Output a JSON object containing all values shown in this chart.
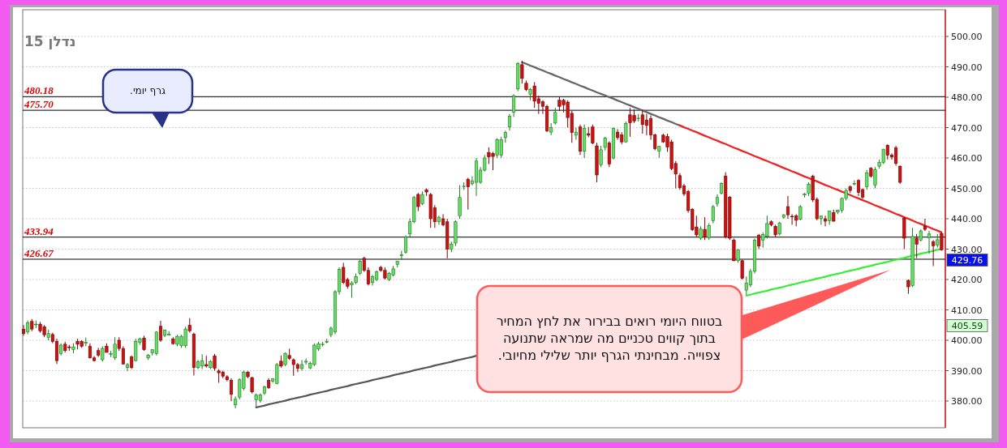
{
  "chart_data": {
    "type": "candlestick",
    "title": "נדלן 15",
    "categories": [
      null,
      null,
      null,
      null,
      null,
      null,
      null,
      null,
      null,
      null,
      null,
      null,
      null,
      null,
      null,
      null,
      null,
      null,
      null,
      null,
      null,
      null,
      null,
      null,
      null,
      null,
      null,
      null,
      null,
      null,
      null,
      null,
      null,
      null,
      null,
      null,
      null,
      null,
      null,
      null,
      null,
      null,
      null,
      null,
      null,
      null,
      null,
      null,
      null,
      null,
      null,
      null,
      null,
      null,
      null,
      null,
      null,
      null,
      null,
      null,
      null,
      null,
      null,
      null,
      null,
      null,
      null,
      null,
      null,
      null,
      null,
      null,
      null,
      null,
      null,
      null,
      null,
      null,
      null,
      null,
      null,
      null,
      null,
      null,
      null,
      null,
      null,
      null,
      null,
      null,
      null,
      null,
      null,
      null,
      null,
      null,
      null,
      null,
      null,
      null,
      null,
      null,
      null,
      null,
      null,
      null,
      null,
      null,
      null,
      null,
      null,
      null,
      null,
      null,
      null,
      null,
      null,
      null,
      null,
      null,
      null,
      null,
      null,
      null,
      null,
      null,
      null,
      null,
      null,
      null,
      null,
      null,
      null,
      null,
      null,
      null,
      null,
      null,
      null,
      null,
      null,
      null,
      null,
      null,
      null,
      null,
      null,
      null,
      null,
      null,
      null,
      null,
      null,
      null,
      null,
      null,
      null,
      null,
      null,
      null,
      null,
      null,
      null,
      null,
      null,
      null,
      null,
      null,
      null,
      null,
      null,
      null,
      null,
      null,
      null,
      null,
      null,
      null,
      null,
      null,
      null,
      null,
      null,
      null,
      null,
      null,
      null,
      null,
      null,
      null,
      null,
      null,
      null,
      null,
      null,
      null,
      null,
      null,
      null,
      null,
      null,
      null,
      null,
      null,
      null,
      null,
      null,
      null,
      null,
      null,
      null,
      null,
      null,
      null,
      null,
      null,
      null,
      null,
      null,
      null,
      null,
      null
    ],
    "ohlc": [
      [
        403.6,
        405.0,
        401.5,
        402.2
      ],
      [
        402.8,
        406.5,
        402.0,
        405.8
      ],
      [
        406.2,
        407.0,
        403.0,
        403.7
      ],
      [
        405.3,
        406.5,
        404.0,
        405.3
      ],
      [
        405.3,
        406.0,
        402.5,
        403.1
      ],
      [
        404.4,
        405.0,
        401.0,
        401.8
      ],
      [
        400.9,
        403.5,
        400.0,
        402.2
      ],
      [
        401.9,
        402.5,
        399.0,
        399.6
      ],
      [
        399.6,
        400.5,
        392.2,
        393.3
      ],
      [
        395.6,
        399.0,
        395.0,
        398.4
      ],
      [
        398.7,
        399.5,
        396.0,
        396.6
      ],
      [
        397.8,
        398.5,
        396.5,
        397.6
      ],
      [
        396.9,
        399.0,
        395.7,
        397.8
      ],
      [
        399.6,
        400.5,
        397.0,
        398.7
      ],
      [
        399.6,
        400.0,
        397.5,
        398.0
      ],
      [
        399.0,
        400.9,
        398.0,
        399.3
      ],
      [
        398.0,
        399.0,
        394.0,
        394.2
      ],
      [
        394.2,
        394.8,
        393.0,
        393.3
      ],
      [
        396.6,
        397.5,
        394.5,
        395.1
      ],
      [
        393.6,
        398.0,
        393.0,
        397.3
      ],
      [
        398.0,
        399.0,
        396.0,
        396.0
      ],
      [
        395.5,
        396.5,
        394.5,
        395.6
      ],
      [
        394.2,
        401.0,
        393.5,
        398.7
      ],
      [
        400.0,
        401.0,
        396.5,
        397.3
      ],
      [
        397.3,
        398.0,
        392.0,
        392.2
      ],
      [
        391.0,
        392.5,
        389.8,
        392.0
      ],
      [
        394.5,
        395.0,
        390.5,
        391.0
      ],
      [
        393.3,
        400.5,
        393.0,
        399.6
      ],
      [
        399.3,
        400.9,
        398.5,
        400.4
      ],
      [
        400.7,
        401.5,
        396.5,
        396.9
      ],
      [
        394.2,
        395.5,
        393.5,
        395.1
      ],
      [
        395.9,
        397.0,
        395.0,
        396.9
      ],
      [
        395.6,
        403.0,
        395.0,
        402.7
      ],
      [
        404.6,
        406.4,
        399.5,
        400.0
      ],
      [
        401.6,
        403.5,
        401.0,
        403.3
      ],
      [
        402.0,
        403.0,
        401.5,
        402.0
      ],
      [
        400.4,
        401.0,
        398.5,
        398.9
      ],
      [
        398.7,
        401.8,
        398.0,
        401.3
      ],
      [
        398.2,
        401.8,
        397.5,
        401.3
      ],
      [
        398.2,
        404.5,
        397.5,
        403.7
      ],
      [
        404.9,
        407.3,
        402.5,
        403.1
      ],
      [
        402.0,
        402.5,
        388.4,
        391.0
      ],
      [
        391.0,
        393.5,
        390.5,
        393.0
      ],
      [
        391.5,
        395.4,
        390.5,
        393.3
      ],
      [
        392.0,
        394.9,
        391.0,
        391.5
      ],
      [
        391.0,
        393.5,
        390.5,
        393.0
      ],
      [
        394.8,
        395.5,
        390.0,
        390.8
      ],
      [
        389.9,
        390.5,
        386.0,
        389.3
      ],
      [
        389.5,
        390.0,
        387.5,
        388.2
      ],
      [
        388.0,
        388.5,
        386.5,
        387.0
      ],
      [
        386.8,
        387.5,
        380.0,
        382.2
      ],
      [
        378.7,
        381.5,
        377.6,
        380.6
      ],
      [
        381.3,
        387.5,
        380.5,
        387.0
      ],
      [
        384.2,
        390.0,
        383.5,
        389.5
      ],
      [
        389.5,
        389.8,
        387.5,
        388.0
      ],
      [
        387.7,
        388.0,
        382.5,
        383.0
      ],
      [
        380.4,
        382.5,
        378.0,
        382.0
      ],
      [
        380.2,
        382.5,
        379.5,
        382.0
      ],
      [
        382.6,
        385.0,
        382.0,
        384.7
      ],
      [
        386.8,
        387.5,
        384.0,
        384.4
      ],
      [
        386.5,
        387.5,
        386.0,
        387.3
      ],
      [
        385.8,
        392.5,
        385.5,
        392.0
      ],
      [
        393.1,
        395.0,
        391.0,
        391.5
      ],
      [
        392.0,
        396.0,
        391.5,
        395.7
      ],
      [
        395.0,
        397.2,
        393.5,
        394.0
      ],
      [
        393.6,
        394.0,
        388.3,
        392.0
      ],
      [
        392.0,
        392.5,
        389.5,
        390.7
      ],
      [
        390.7,
        393.5,
        390.0,
        392.0
      ],
      [
        392.8,
        394.0,
        392.0,
        393.1
      ],
      [
        390.9,
        393.0,
        390.5,
        392.4
      ],
      [
        392.0,
        399.0,
        391.5,
        398.4
      ],
      [
        397.1,
        399.5,
        396.5,
        398.9
      ],
      [
        398.6,
        399.5,
        398.0,
        398.7
      ],
      [
        399.5,
        400.5,
        399.0,
        399.6
      ],
      [
        401.8,
        404.5,
        401.0,
        404.0
      ],
      [
        402.7,
        416.5,
        402.0,
        416.0
      ],
      [
        416.0,
        424.0,
        415.0,
        423.3
      ],
      [
        424.0,
        425.5,
        418.5,
        419.0
      ],
      [
        420.0,
        420.5,
        417.0,
        417.8
      ],
      [
        418.2,
        419.5,
        414.0,
        418.8
      ],
      [
        419.0,
        422.0,
        418.5,
        421.0
      ],
      [
        422.0,
        426.5,
        421.5,
        426.0
      ],
      [
        427.0,
        427.5,
        422.5,
        423.0
      ],
      [
        423.0,
        424.0,
        418.0,
        418.5
      ],
      [
        419.0,
        421.5,
        418.0,
        421.0
      ],
      [
        420.0,
        423.0,
        419.5,
        422.5
      ],
      [
        424.0,
        424.5,
        422.5,
        423.0
      ],
      [
        423.0,
        424.0,
        420.0,
        420.5
      ],
      [
        420.0,
        422.5,
        419.5,
        422.0
      ],
      [
        421.5,
        424.5,
        421.0,
        423.5
      ],
      [
        425.0,
        426.0,
        424.0,
        426.0
      ],
      [
        427.8,
        429.5,
        426.5,
        428.2
      ],
      [
        429.0,
        434.5,
        428.5,
        434.0
      ],
      [
        435.0,
        440.0,
        434.0,
        439.0
      ],
      [
        439.0,
        447.5,
        438.5,
        447.0
      ],
      [
        448.0,
        448.5,
        442.5,
        444.0
      ],
      [
        445.0,
        449.0,
        444.5,
        448.0
      ],
      [
        449.5,
        450.0,
        447.5,
        448.8
      ],
      [
        448.0,
        448.5,
        437.0,
        440.0
      ],
      [
        443.6,
        444.5,
        437.0,
        439.0
      ],
      [
        439.0,
        441.0,
        438.0,
        440.5
      ],
      [
        440.0,
        441.5,
        437.5,
        438.0
      ],
      [
        439.0,
        440.0,
        427.0,
        430.0
      ],
      [
        430.0,
        432.5,
        429.0,
        431.7
      ],
      [
        432.0,
        439.5,
        431.0,
        439.0
      ],
      [
        441.0,
        451.0,
        440.0,
        447.0
      ],
      [
        450.5,
        452.0,
        449.5,
        450.7
      ],
      [
        453.0,
        453.5,
        443.0,
        450.5
      ],
      [
        451.5,
        454.0,
        451.0,
        452.5
      ],
      [
        452.0,
        460.0,
        447.5,
        459.0
      ],
      [
        452.0,
        457.0,
        451.5,
        456.0
      ],
      [
        456.0,
        461.0,
        455.5,
        460.0
      ],
      [
        461.8,
        463.5,
        458.0,
        460.4
      ],
      [
        461.5,
        462.0,
        456.0,
        460.5
      ],
      [
        461.0,
        466.5,
        460.0,
        466.0
      ],
      [
        460.9,
        467.0,
        460.0,
        466.0
      ],
      [
        466.7,
        469.0,
        465.0,
        468.4
      ],
      [
        470.2,
        474.5,
        469.0,
        473.8
      ],
      [
        475.1,
        481.0,
        473.5,
        480.4
      ],
      [
        482.7,
        491.5,
        482.0,
        491.1
      ],
      [
        490.7,
        492.0,
        484.5,
        486.2
      ],
      [
        484.6,
        485.5,
        482.0,
        482.5
      ],
      [
        481.0,
        483.0,
        479.0,
        482.5
      ],
      [
        483.7,
        485.0,
        476.5,
        478.7
      ],
      [
        479.5,
        480.5,
        474.5,
        478.0
      ],
      [
        478.5,
        479.0,
        474.5,
        477.0
      ],
      [
        477.0,
        477.5,
        468.5,
        468.9
      ],
      [
        468.5,
        471.5,
        467.5,
        470.0
      ],
      [
        471.5,
        476.5,
        471.0,
        475.0
      ],
      [
        479.0,
        480.0,
        475.5,
        477.0
      ],
      [
        479.0,
        479.5,
        475.0,
        477.5
      ],
      [
        478.4,
        479.0,
        470.0,
        473.3
      ],
      [
        474.7,
        475.5,
        465.0,
        468.4
      ],
      [
        467.5,
        470.0,
        466.0,
        468.5
      ],
      [
        470.2,
        471.0,
        461.0,
        462.2
      ],
      [
        462.2,
        471.0,
        460.0,
        469.8
      ],
      [
        468.0,
        470.2,
        466.8,
        467.5
      ],
      [
        470.2,
        471.0,
        464.5,
        464.9
      ],
      [
        464.0,
        465.0,
        452.0,
        454.4
      ],
      [
        457.8,
        464.0,
        457.0,
        462.7
      ],
      [
        463.5,
        467.0,
        462.5,
        466.5
      ],
      [
        464.9,
        465.5,
        457.0,
        458.0
      ],
      [
        460.0,
        470.0,
        459.5,
        469.8
      ],
      [
        468.5,
        469.5,
        466.0,
        466.7
      ],
      [
        467.6,
        468.5,
        464.5,
        465.3
      ],
      [
        465.3,
        472.0,
        465.0,
        471.3
      ],
      [
        474.2,
        476.5,
        467.0,
        471.6
      ],
      [
        474.0,
        476.0,
        471.5,
        472.2
      ],
      [
        473.0,
        474.5,
        472.0,
        473.1
      ],
      [
        474.2,
        476.0,
        468.0,
        471.0
      ],
      [
        472.5,
        474.5,
        467.5,
        470.7
      ],
      [
        473.0,
        474.0,
        466.0,
        467.6
      ],
      [
        467.6,
        468.0,
        462.5,
        463.1
      ],
      [
        462.3,
        464.0,
        460.0,
        463.8
      ],
      [
        467.5,
        468.0,
        465.0,
        465.3
      ],
      [
        467.1,
        468.0,
        462.0,
        463.6
      ],
      [
        465.3,
        466.0,
        456.0,
        456.5
      ],
      [
        458.2,
        459.0,
        450.0,
        454.7
      ],
      [
        454.2,
        455.0,
        449.5,
        450.2
      ],
      [
        450.8,
        451.5,
        447.5,
        448.2
      ],
      [
        448.9,
        449.5,
        442.0,
        442.7
      ],
      [
        443.1,
        443.5,
        436.0,
        436.4
      ],
      [
        437.3,
        441.0,
        434.0,
        434.7
      ],
      [
        433.6,
        437.5,
        433.0,
        436.6
      ],
      [
        436.5,
        440.5,
        433.0,
        434.0
      ],
      [
        433.8,
        438.5,
        433.0,
        437.8
      ],
      [
        439.3,
        444.5,
        438.5,
        444.0
      ],
      [
        445.0,
        448.0,
        444.0,
        447.0
      ],
      [
        448.4,
        452.0,
        448.0,
        451.6
      ],
      [
        454.0,
        455.3,
        433.5,
        434.0
      ],
      [
        447.1,
        447.5,
        433.0,
        433.6
      ],
      [
        432.9,
        433.5,
        426.0,
        426.2
      ],
      [
        426.2,
        430.0,
        425.5,
        429.8
      ],
      [
        426.2,
        426.5,
        420.0,
        420.4
      ],
      [
        416.5,
        421.0,
        415.0,
        418.8
      ],
      [
        418.2,
        423.5,
        417.5,
        422.7
      ],
      [
        422.7,
        433.5,
        422.0,
        432.9
      ],
      [
        434.5,
        435.0,
        430.0,
        431.0
      ],
      [
        433.0,
        435.5,
        430.5,
        434.8
      ],
      [
        434.2,
        441.0,
        433.5,
        438.4
      ],
      [
        439.0,
        439.5,
        437.5,
        438.0
      ],
      [
        437.5,
        438.0,
        434.0,
        434.7
      ],
      [
        435.0,
        439.0,
        434.5,
        438.6
      ],
      [
        440.5,
        441.5,
        440.0,
        441.3
      ],
      [
        444.0,
        447.5,
        440.0,
        441.3
      ],
      [
        440.8,
        441.5,
        438.0,
        440.6
      ],
      [
        441.0,
        441.5,
        437.5,
        439.5
      ],
      [
        439.8,
        444.5,
        439.5,
        444.0
      ],
      [
        447.8,
        448.5,
        447.0,
        448.2
      ],
      [
        448.4,
        452.0,
        447.5,
        451.4
      ],
      [
        454.0,
        454.5,
        445.5,
        446.2
      ],
      [
        446.4,
        447.0,
        439.5,
        440.0
      ],
      [
        440.0,
        440.9,
        438.0,
        440.9
      ],
      [
        440.0,
        441.0,
        437.5,
        439.2
      ],
      [
        439.3,
        442.5,
        438.0,
        442.5
      ],
      [
        442.0,
        443.0,
        439.0,
        439.2
      ],
      [
        442.2,
        443.0,
        441.5,
        442.8
      ],
      [
        442.8,
        447.0,
        442.0,
        446.7
      ],
      [
        446.7,
        450.0,
        446.0,
        449.3
      ],
      [
        450.5,
        451.0,
        448.5,
        449.3
      ],
      [
        451.5,
        452.6,
        451.0,
        451.6
      ],
      [
        452.6,
        453.0,
        447.5,
        448.7
      ],
      [
        449.6,
        450.0,
        446.5,
        447.1
      ],
      [
        450.5,
        456.0,
        449.5,
        455.1
      ],
      [
        456.6,
        457.0,
        453.5,
        454.0
      ],
      [
        451.1,
        457.0,
        450.0,
        456.2
      ],
      [
        457.3,
        459.5,
        456.5,
        458.5
      ],
      [
        458.5,
        463.0,
        458.0,
        462.9
      ],
      [
        464.2,
        464.5,
        459.5,
        460.9
      ],
      [
        461.0,
        461.5,
        459.5,
        460.3
      ],
      [
        463.3,
        464.0,
        457.5,
        458.2
      ],
      [
        457.3,
        457.5,
        451.5,
        452.0
      ],
      [
        440.2,
        440.5,
        430.0,
        433.6
      ],
      [
        419.7,
        420.0,
        415.3,
        417.6
      ],
      [
        418.0,
        437.0,
        417.5,
        434.2
      ],
      [
        433.6,
        435.0,
        427.0,
        431.6
      ],
      [
        433.0,
        436.5,
        432.5,
        436.0
      ],
      [
        437.5,
        440.0,
        436.0,
        436.5
      ],
      [
        433.7,
        436.0,
        428.5,
        435.0
      ],
      [
        432.4,
        433.0,
        424.4,
        431.1
      ],
      [
        431.3,
        435.0,
        430.5,
        433.1
      ],
      [
        435.1,
        435.5,
        429.5,
        429.76
      ]
    ],
    "series": [
      {
        "type": "line",
        "color": "#666666",
        "values": [
          null,
          null,
          null,
          null,
          null,
          null,
          null,
          null,
          null,
          null,
          null,
          null,
          null,
          null,
          null,
          null,
          null,
          null,
          null,
          null,
          null,
          null,
          null,
          null,
          null,
          null,
          null,
          null,
          null,
          null,
          null,
          null,
          null,
          null,
          null,
          null,
          null,
          null,
          null,
          null,
          null,
          null,
          null,
          null,
          null,
          null,
          null,
          null,
          null,
          null,
          null,
          null,
          null,
          null,
          null,
          null,
          null,
          null,
          null,
          null,
          null,
          null,
          null,
          null,
          null,
          null,
          null,
          null,
          null,
          null,
          null,
          null,
          null,
          null,
          null,
          null,
          null,
          null,
          null,
          null,
          null,
          null,
          null,
          null,
          null,
          null,
          null,
          null,
          null,
          null,
          null,
          null,
          null,
          null,
          null,
          null,
          null,
          null,
          null,
          null,
          null,
          null,
          null,
          null,
          null,
          null,
          null,
          null,
          null,
          null,
          null,
          null,
          null,
          null,
          null,
          null,
          null,
          null,
          null,
          null,
          491.5,
          491.0,
          490.4,
          489.9,
          489.3,
          488.8,
          488.2,
          487.7,
          487.1,
          486.6,
          486.0,
          485.5,
          484.9,
          484.4,
          483.8,
          483.3,
          482.7,
          482.2,
          481.6,
          481.1,
          480.6,
          480.0,
          479.5,
          478.9,
          478.4,
          477.8,
          477.3,
          476.7,
          476.2,
          475.6,
          475.1,
          474.5,
          474.0,
          473.4,
          472.9,
          472.3,
          471.8,
          471.2,
          470.7,
          null,
          null,
          null,
          null,
          null,
          null,
          null,
          null,
          null,
          null,
          null,
          null,
          null,
          null,
          null,
          null,
          null,
          null,
          null,
          null,
          null,
          null,
          null,
          null,
          null,
          null,
          null,
          null,
          null,
          null,
          null,
          null,
          null,
          null,
          null,
          null,
          null,
          null,
          null,
          null,
          null,
          null,
          null,
          null,
          null,
          null,
          null,
          null,
          null,
          null,
          null,
          null,
          null,
          null,
          null,
          null,
          null,
          null,
          null,
          null,
          null,
          null,
          null
        ]
      },
      {
        "type": "line",
        "color": "#ee2222",
        "values": [
          null,
          null,
          null,
          null,
          null,
          null,
          null,
          null,
          null,
          null,
          null,
          null,
          null,
          null,
          null,
          null,
          null,
          null,
          null,
          null,
          null,
          null,
          null,
          null,
          null,
          null,
          null,
          null,
          null,
          null,
          null,
          null,
          null,
          null,
          null,
          null,
          null,
          null,
          null,
          null,
          null,
          null,
          null,
          null,
          null,
          null,
          null,
          null,
          null,
          null,
          null,
          null,
          null,
          null,
          null,
          null,
          null,
          null,
          null,
          null,
          null,
          null,
          null,
          null,
          null,
          null,
          null,
          null,
          null,
          null,
          null,
          null,
          null,
          null,
          null,
          null,
          null,
          null,
          null,
          null,
          null,
          null,
          null,
          null,
          null,
          null,
          null,
          null,
          null,
          null,
          null,
          null,
          null,
          null,
          null,
          null,
          null,
          null,
          null,
          null,
          null,
          null,
          null,
          null,
          null,
          null,
          null,
          null,
          null,
          null,
          null,
          null,
          null,
          null,
          null,
          null,
          null,
          null,
          null,
          null,
          null,
          null,
          null,
          null,
          null,
          null,
          null,
          null,
          null,
          null,
          null,
          null,
          null,
          null,
          null,
          null,
          null,
          null,
          null,
          null,
          null,
          null,
          null,
          null,
          null,
          null,
          null,
          null,
          null,
          null,
          null,
          null,
          null,
          null,
          null,
          null,
          null,
          null,
          470.7,
          470.1,
          469.6,
          469.0,
          468.5,
          467.9,
          467.3,
          466.8,
          466.2,
          465.7,
          465.1,
          464.6,
          464.0,
          463.4,
          462.9,
          462.3,
          461.8,
          461.2,
          460.6,
          460.1,
          459.5,
          459.0,
          458.4,
          457.9,
          457.3,
          456.7,
          456.2,
          455.6,
          455.1,
          454.5,
          453.9,
          453.4,
          452.8,
          452.3,
          451.7,
          451.1,
          450.6,
          450.0,
          449.5,
          448.9,
          448.4,
          447.8,
          447.2,
          446.7,
          446.1,
          445.6,
          445.0,
          444.4,
          443.9,
          443.3,
          442.8,
          442.2,
          441.6,
          441.1,
          440.5,
          440.0,
          439.4,
          438.8,
          438.3,
          437.7,
          437.2,
          436.6,
          436.1,
          435.5
        ]
      },
      {
        "type": "line",
        "color": "#555555",
        "values": [
          null,
          null,
          null,
          null,
          null,
          null,
          null,
          null,
          null,
          null,
          null,
          null,
          null,
          null,
          null,
          null,
          null,
          null,
          null,
          null,
          null,
          null,
          null,
          null,
          null,
          null,
          null,
          null,
          null,
          null,
          null,
          null,
          null,
          null,
          null,
          null,
          null,
          null,
          null,
          null,
          null,
          null,
          null,
          null,
          null,
          null,
          null,
          null,
          null,
          null,
          null,
          null,
          null,
          null,
          null,
          null,
          377.9,
          378.2,
          378.5,
          378.9,
          379.2,
          379.5,
          379.8,
          380.1,
          380.5,
          380.8,
          381.1,
          381.4,
          381.7,
          382.1,
          382.4,
          382.7,
          383.0,
          383.3,
          383.7,
          384.0,
          384.3,
          384.6,
          384.9,
          385.3,
          385.6,
          385.9,
          386.2,
          386.5,
          386.9,
          387.2,
          387.5,
          387.8,
          388.1,
          388.5,
          388.8,
          389.1,
          389.4,
          389.7,
          390.1,
          390.4,
          390.7,
          391.0,
          391.3,
          391.7,
          392.0,
          392.3,
          392.6,
          392.9,
          393.3,
          393.6,
          393.9,
          394.2,
          394.5,
          394.9,
          null,
          null,
          null,
          null,
          null,
          null,
          null,
          null,
          null,
          null,
          null,
          null,
          null,
          null,
          null,
          null,
          null,
          null,
          null,
          null,
          null,
          null,
          null,
          null,
          null,
          null,
          null,
          null,
          null,
          null,
          null,
          null,
          null,
          null,
          null,
          null,
          null,
          null,
          null,
          null,
          null,
          null,
          null,
          null,
          null,
          null,
          null,
          null,
          null,
          null,
          null,
          null,
          null,
          null,
          null,
          null,
          null,
          null,
          null,
          null,
          null,
          null,
          null,
          null,
          null,
          null,
          null,
          null,
          null,
          null,
          null,
          null,
          null,
          null,
          null,
          null,
          null,
          null,
          null,
          null,
          null,
          null,
          null,
          null,
          null,
          null,
          null,
          null,
          null,
          null,
          null,
          null,
          null,
          null,
          null,
          null,
          null,
          null,
          null,
          null,
          null,
          null,
          null,
          null,
          null,
          null,
          null,
          null,
          null,
          null,
          null,
          null
        ]
      },
      {
        "type": "line",
        "color": "#33ee33",
        "values": [
          null,
          null,
          null,
          null,
          null,
          null,
          null,
          null,
          null,
          null,
          null,
          null,
          null,
          null,
          null,
          null,
          null,
          null,
          null,
          null,
          null,
          null,
          null,
          null,
          null,
          null,
          null,
          null,
          null,
          null,
          null,
          null,
          null,
          null,
          null,
          null,
          null,
          null,
          null,
          null,
          null,
          null,
          null,
          null,
          null,
          null,
          null,
          null,
          null,
          null,
          null,
          null,
          null,
          null,
          null,
          null,
          null,
          null,
          null,
          null,
          null,
          null,
          null,
          null,
          null,
          null,
          null,
          null,
          null,
          null,
          null,
          null,
          null,
          null,
          null,
          null,
          null,
          null,
          null,
          null,
          null,
          null,
          null,
          null,
          null,
          null,
          null,
          null,
          null,
          null,
          null,
          null,
          null,
          null,
          null,
          null,
          null,
          null,
          null,
          null,
          null,
          null,
          null,
          null,
          null,
          null,
          null,
          null,
          null,
          null,
          null,
          null,
          null,
          null,
          null,
          null,
          null,
          null,
          null,
          null,
          null,
          null,
          null,
          null,
          null,
          null,
          null,
          null,
          null,
          null,
          null,
          null,
          null,
          null,
          null,
          null,
          null,
          null,
          null,
          null,
          null,
          null,
          null,
          null,
          null,
          null,
          null,
          null,
          null,
          null,
          null,
          null,
          null,
          null,
          null,
          null,
          null,
          null,
          null,
          null,
          null,
          null,
          null,
          null,
          null,
          null,
          null,
          null,
          null,
          null,
          null,
          null,
          null,
          null,
          414.7,
          415.0,
          415.4,
          415.7,
          416.0,
          416.3,
          416.7,
          417.0,
          417.3,
          417.6,
          418.0,
          418.3,
          418.6,
          419.0,
          419.3,
          419.6,
          419.9,
          420.3,
          420.6,
          420.9,
          421.3,
          421.6,
          421.9,
          422.2,
          422.6,
          422.9,
          423.2,
          423.5,
          423.9,
          424.2,
          424.5,
          424.9,
          425.2,
          425.5,
          425.8,
          426.2,
          426.5,
          426.8,
          427.1,
          427.5,
          427.8,
          428.1,
          428.5,
          428.8,
          429.1,
          429.4,
          429.8,
          430.1
        ]
      }
    ],
    "ylim": [
      371.2,
      508.8
    ],
    "yticks": [
      {
        "value": 380,
        "label": "380.00"
      },
      {
        "value": 390,
        "label": "390.00"
      },
      {
        "value": 400,
        "label": "400.00"
      },
      {
        "value": 410,
        "label": "410.00"
      },
      {
        "value": 420,
        "label": "420.00"
      },
      {
        "value": 430,
        "label": "430.00"
      },
      {
        "value": 440,
        "label": "440.00"
      },
      {
        "value": 450,
        "label": "450.00"
      },
      {
        "value": 460,
        "label": "460.00"
      },
      {
        "value": 470,
        "label": "470.00"
      },
      {
        "value": 480,
        "label": "480.00"
      },
      {
        "value": 490,
        "label": "490.00"
      },
      {
        "value": 500,
        "label": "500.00"
      }
    ],
    "grid": "y",
    "ref_lines": [
      {
        "axis": "y",
        "value": 480.18,
        "label": "480.18",
        "color": "#000000"
      },
      {
        "axis": "y",
        "value": 475.7,
        "label": "475.70",
        "color": "#000000"
      },
      {
        "axis": "y",
        "value": 433.94,
        "label": "433.94",
        "color": "#000000"
      },
      {
        "axis": "y",
        "value": 426.67,
        "label": "426.67",
        "color": "#000000"
      }
    ],
    "annotations": [
      "גרף יומי.",
      "בטווח היומי רואים בבירור את לחץ המחיר בתוך קווים טכניים מה שמראה שתנועה צפוייה. מבחינתי הגרף יותר שלילי מחיובי.",
      "429.76",
      "405.59"
    ]
  }
}
